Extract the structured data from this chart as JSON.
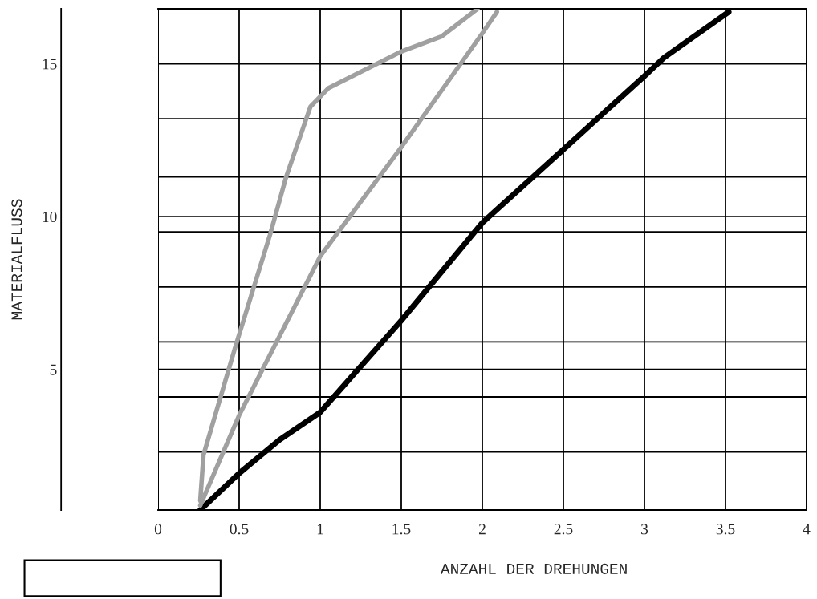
{
  "chart_data": {
    "type": "line",
    "xlabel": "ANZAHL DER DREHUNGEN",
    "ylabel": "MATERIALFLUSS",
    "xlim": [
      0,
      4
    ],
    "xticks": [
      0,
      0.5,
      1,
      1.5,
      2,
      2.5,
      3,
      3.5,
      4
    ],
    "ylim": [
      0.4,
      16.8
    ],
    "yticks": [
      {
        "value": 2.3,
        "label": null
      },
      {
        "value": 4.1,
        "label": null
      },
      5,
      {
        "value": 5.9,
        "label": null
      },
      {
        "value": 7.7,
        "label": null
      },
      {
        "value": 9.5,
        "label": null
      },
      10,
      {
        "value": 11.3,
        "label": null
      },
      {
        "value": 13.2,
        "label": null
      },
      15
    ],
    "grid": true,
    "line_style": "solid",
    "marker": "none",
    "series": [
      {
        "color": "#000000",
        "x": [
          0.26,
          0.5,
          0.75,
          1,
          1.5,
          2,
          2.5,
          3,
          3.12,
          3.52
        ],
        "values": [
          0.4,
          1.6,
          2.7,
          3.6,
          6.6,
          9.8,
          12.2,
          14.6,
          15.2,
          16.7
        ]
      },
      {
        "color": "#a0a0a0",
        "x": [
          0.26,
          0.28,
          0.48,
          0.69,
          0.79,
          0.94,
          1.05,
          1.5,
          1.75,
          1.97
        ],
        "values": [
          0.7,
          2.2,
          5.8,
          9.4,
          11.3,
          13.6,
          14.2,
          15.4,
          15.9,
          16.8
        ]
      },
      {
        "color": "#a0a0a0",
        "x": [
          0.26,
          0.5,
          1,
          1.49,
          2,
          2.09
        ],
        "values": [
          0.55,
          3.5,
          8.7,
          12.2,
          16.0,
          16.7
        ]
      }
    ]
  }
}
